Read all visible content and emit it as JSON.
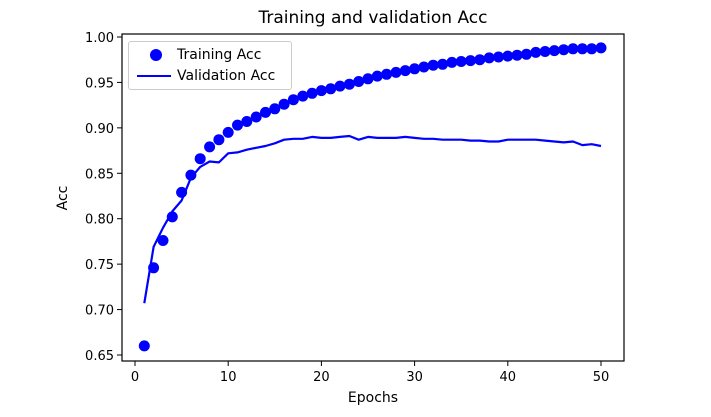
{
  "chart_data": {
    "type": "line",
    "title": "Training and validation Acc",
    "xlabel": "Epochs",
    "ylabel": "Acc",
    "xlim": [
      -1.5,
      52.5
    ],
    "ylim": [
      0.644,
      1.003
    ],
    "xticks": [
      0,
      10,
      20,
      30,
      40,
      50
    ],
    "yticks": [
      0.65,
      0.7,
      0.75,
      0.8,
      0.85,
      0.9,
      0.95,
      1.0
    ],
    "ytick_labels": [
      "0.65",
      "0.70",
      "0.75",
      "0.80",
      "0.85",
      "0.90",
      "0.95",
      "1.00"
    ],
    "grid": false,
    "legend_position": "upper left",
    "x": [
      1,
      2,
      3,
      4,
      5,
      6,
      7,
      8,
      9,
      10,
      11,
      12,
      13,
      14,
      15,
      16,
      17,
      18,
      19,
      20,
      21,
      22,
      23,
      24,
      25,
      26,
      27,
      28,
      29,
      30,
      31,
      32,
      33,
      34,
      35,
      36,
      37,
      38,
      39,
      40,
      41,
      42,
      43,
      44,
      45,
      46,
      47,
      48,
      49,
      50
    ],
    "series": [
      {
        "name": "Training Acc",
        "style": "dots",
        "color": "#0000ff",
        "values": [
          0.66,
          0.746,
          0.776,
          0.802,
          0.829,
          0.848,
          0.866,
          0.879,
          0.887,
          0.895,
          0.903,
          0.907,
          0.912,
          0.917,
          0.921,
          0.926,
          0.931,
          0.935,
          0.938,
          0.941,
          0.943,
          0.946,
          0.948,
          0.951,
          0.954,
          0.957,
          0.959,
          0.961,
          0.963,
          0.965,
          0.967,
          0.969,
          0.97,
          0.972,
          0.973,
          0.974,
          0.975,
          0.977,
          0.978,
          0.979,
          0.98,
          0.981,
          0.983,
          0.984,
          0.985,
          0.986,
          0.987,
          0.987,
          0.987,
          0.988
        ]
      },
      {
        "name": "Validation Acc",
        "style": "line",
        "color": "#0000ff",
        "values": [
          0.707,
          0.769,
          0.79,
          0.808,
          0.82,
          0.845,
          0.857,
          0.863,
          0.862,
          0.872,
          0.873,
          0.876,
          0.878,
          0.88,
          0.883,
          0.887,
          0.888,
          0.888,
          0.89,
          0.889,
          0.889,
          0.89,
          0.891,
          0.887,
          0.89,
          0.889,
          0.889,
          0.889,
          0.89,
          0.889,
          0.888,
          0.888,
          0.887,
          0.887,
          0.887,
          0.886,
          0.886,
          0.885,
          0.885,
          0.887,
          0.887,
          0.887,
          0.887,
          0.886,
          0.885,
          0.884,
          0.885,
          0.881,
          0.882,
          0.88
        ]
      }
    ]
  }
}
